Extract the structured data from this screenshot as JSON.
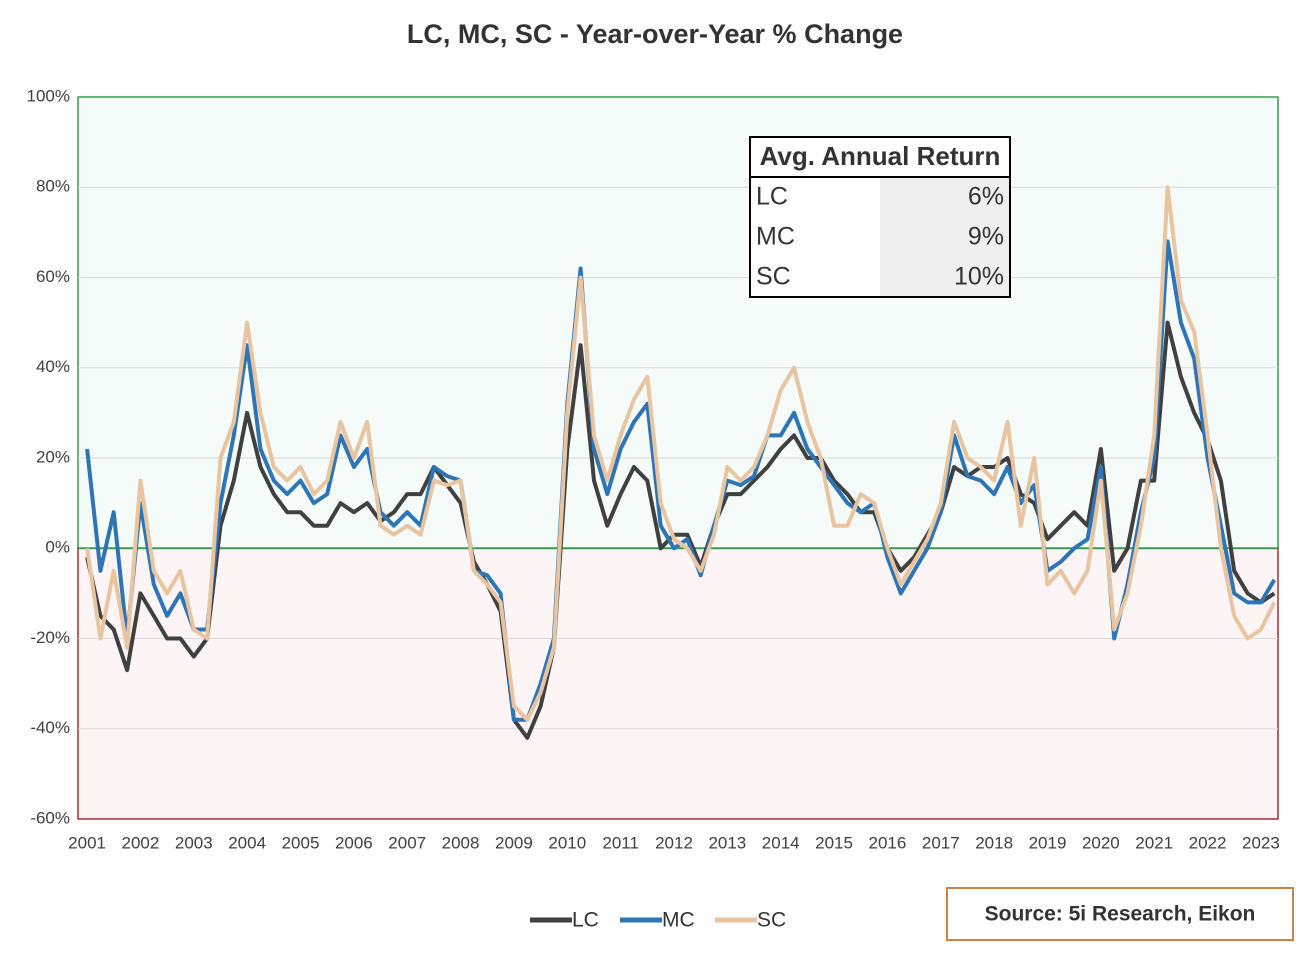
{
  "chart_data": {
    "type": "line",
    "title": "LC, MC, SC - Year-over-Year % Change",
    "x": [
      2001,
      2001.25,
      2001.5,
      2001.75,
      2002,
      2002.25,
      2002.5,
      2002.75,
      2003,
      2003.25,
      2003.5,
      2003.75,
      2004,
      2004.25,
      2004.5,
      2004.75,
      2005,
      2005.25,
      2005.5,
      2005.75,
      2006,
      2006.25,
      2006.5,
      2006.75,
      2007,
      2007.25,
      2007.5,
      2007.75,
      2008,
      2008.25,
      2008.5,
      2008.75,
      2009,
      2009.25,
      2009.5,
      2009.75,
      2010,
      2010.25,
      2010.5,
      2010.75,
      2011,
      2011.25,
      2011.5,
      2011.75,
      2012,
      2012.25,
      2012.5,
      2012.75,
      2013,
      2013.25,
      2013.5,
      2013.75,
      2014,
      2014.25,
      2014.5,
      2014.75,
      2015,
      2015.25,
      2015.5,
      2015.75,
      2016,
      2016.25,
      2016.5,
      2016.75,
      2017,
      2017.25,
      2017.5,
      2017.75,
      2018,
      2018.25,
      2018.5,
      2018.75,
      2019,
      2019.25,
      2019.5,
      2019.75,
      2020,
      2020.25,
      2020.5,
      2020.75,
      2021,
      2021.25,
      2021.5,
      2021.75,
      2022,
      2022.25,
      2022.5,
      2022.75,
      2023,
      2023.25
    ],
    "series": [
      {
        "name": "LC",
        "color": "#404040",
        "values": [
          -2,
          -15,
          -18,
          -27,
          -10,
          -15,
          -20,
          -20,
          -24,
          -20,
          5,
          15,
          30,
          18,
          12,
          8,
          8,
          5,
          5,
          10,
          8,
          10,
          6,
          8,
          12,
          12,
          18,
          14,
          10,
          -3,
          -8,
          -14,
          -38,
          -42,
          -35,
          -22,
          22,
          45,
          15,
          5,
          12,
          18,
          15,
          0,
          3,
          3,
          -4,
          5,
          12,
          12,
          15,
          18,
          22,
          25,
          20,
          20,
          15,
          12,
          8,
          8,
          0,
          -5,
          -2,
          3,
          8,
          18,
          16,
          18,
          18,
          20,
          12,
          10,
          2,
          5,
          8,
          5,
          22,
          -5,
          0,
          15,
          15,
          50,
          38,
          30,
          24,
          15,
          -5,
          -10,
          -12,
          -10
        ]
      },
      {
        "name": "MC",
        "color": "#2e75b6",
        "values": [
          22,
          -5,
          8,
          -20,
          10,
          -8,
          -15,
          -10,
          -18,
          -18,
          10,
          25,
          45,
          22,
          15,
          12,
          15,
          10,
          12,
          25,
          18,
          22,
          8,
          5,
          8,
          5,
          18,
          16,
          15,
          -5,
          -6,
          -10,
          -38,
          -38,
          -30,
          -20,
          32,
          62,
          22,
          12,
          22,
          28,
          32,
          5,
          0,
          2,
          -6,
          5,
          15,
          14,
          16,
          25,
          25,
          30,
          22,
          18,
          14,
          10,
          8,
          10,
          -2,
          -10,
          -5,
          0,
          8,
          25,
          16,
          15,
          12,
          18,
          10,
          14,
          -5,
          -3,
          0,
          2,
          18,
          -20,
          -8,
          8,
          20,
          68,
          50,
          42,
          20,
          5,
          -10,
          -12,
          -12,
          -7
        ]
      },
      {
        "name": "SC",
        "color": "#e8c4a0",
        "values": [
          0,
          -20,
          -5,
          -22,
          15,
          -5,
          -10,
          -5,
          -18,
          -20,
          20,
          28,
          50,
          30,
          18,
          15,
          18,
          12,
          15,
          28,
          20,
          28,
          5,
          3,
          5,
          3,
          15,
          14,
          15,
          -5,
          -8,
          -12,
          -35,
          -38,
          -32,
          -22,
          30,
          60,
          25,
          15,
          25,
          33,
          38,
          10,
          2,
          0,
          -5,
          3,
          18,
          15,
          18,
          25,
          35,
          40,
          28,
          20,
          5,
          5,
          12,
          10,
          0,
          -8,
          -3,
          2,
          10,
          28,
          20,
          18,
          15,
          28,
          5,
          20,
          -8,
          -5,
          -10,
          -5,
          15,
          -18,
          -10,
          5,
          25,
          80,
          55,
          48,
          25,
          0,
          -15,
          -20,
          -18,
          -12
        ]
      }
    ],
    "xlim": [
      2000.83,
      2023.32
    ],
    "xticks": [
      2001,
      2002,
      2003,
      2004,
      2005,
      2006,
      2007,
      2008,
      2009,
      2010,
      2011,
      2012,
      2013,
      2014,
      2015,
      2016,
      2017,
      2018,
      2019,
      2020,
      2021,
      2022,
      2023
    ],
    "ylim": [
      -60,
      100
    ],
    "yticks": [
      {
        "value": -60,
        "label": "-60%"
      },
      {
        "value": -40,
        "label": "-40%"
      },
      {
        "value": -20,
        "label": "-20%"
      },
      {
        "value": 0,
        "label": "0%"
      },
      {
        "value": 20,
        "label": "20%"
      },
      {
        "value": 40,
        "label": "40%"
      },
      {
        "value": 60,
        "label": "60%"
      },
      {
        "value": 80,
        "label": "80%"
      },
      {
        "value": 100,
        "label": "100%"
      }
    ],
    "grid": true,
    "legend": "bottom",
    "inset_table": {
      "header": "Avg. Annual Return",
      "rows": [
        [
          "LC",
          "6%"
        ],
        [
          "MC",
          "9%"
        ],
        [
          "SC",
          "10%"
        ]
      ]
    },
    "source": "Source: 5i Research, Eikon"
  }
}
